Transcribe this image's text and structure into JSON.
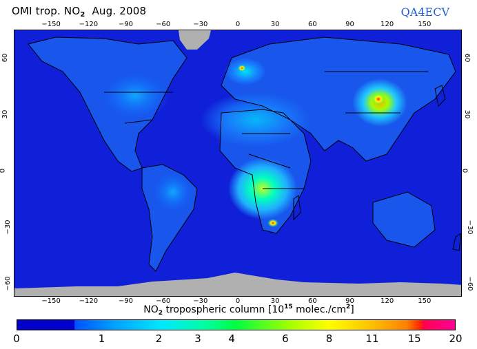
{
  "header": {
    "title_prefix": "OMI trop. NO",
    "title_sub": "2",
    "title_suffix": "Aug. 2008",
    "brand": "QA4ECV"
  },
  "map": {
    "projection": "Equirectangular (Plate Carrée)",
    "lon_ticks_top": [
      "-150",
      "-120",
      "-90",
      "-60",
      "-30",
      "0",
      "30",
      "60",
      "90",
      "120",
      "150"
    ],
    "lon_ticks_bottom": [
      "-150",
      "-120",
      "-90",
      "-60",
      "-30",
      "0",
      "30",
      "60",
      "90",
      "120",
      "150"
    ],
    "lat_ticks_left": [
      "60",
      "30",
      "0",
      "-30",
      "-60"
    ],
    "lat_ticks_right": [
      "60",
      "30",
      "0",
      "-30",
      "-60"
    ],
    "lon_range": [
      -180,
      180
    ],
    "lat_range": [
      -67,
      75
    ],
    "ocean_background_color": "#1020d8",
    "no_data_color": "#b0b0b0",
    "hotspots": [
      {
        "name": "Eastern China",
        "level": "high"
      },
      {
        "name": "Highveld South Africa",
        "level": "high"
      },
      {
        "name": "Central Africa biomass burning",
        "level": "moderate-high"
      },
      {
        "name": "Western Europe / Benelux",
        "level": "moderate"
      },
      {
        "name": "Eastern United States",
        "level": "moderate"
      },
      {
        "name": "Middle East",
        "level": "moderate"
      },
      {
        "name": "South America biomass burning",
        "level": "moderate"
      }
    ]
  },
  "colorbar": {
    "title_prefix": "NO",
    "title_sub": "2",
    "title_mid": " tropospheric column [10",
    "title_sup": "15",
    "title_unit": " molec./cm",
    "title_unit_sup": "2",
    "title_end": "]",
    "tick_labels": [
      "0",
      "1",
      "2",
      "3",
      "4",
      "6",
      "8",
      "11",
      "15",
      "20"
    ],
    "tick_positions_pct": [
      0,
      19.4,
      32.4,
      41.3,
      49.0,
      61.2,
      71.2,
      81.0,
      90.6,
      100
    ],
    "colors": [
      "#0000c8",
      "#0000d0",
      "#0050ff",
      "#00a0ff",
      "#00e8ff",
      "#00ffa0",
      "#00ff40",
      "#a0ff00",
      "#ffff00",
      "#ffc800",
      "#ff8000",
      "#ff2800",
      "#ff0050",
      "#ff0096"
    ]
  }
}
